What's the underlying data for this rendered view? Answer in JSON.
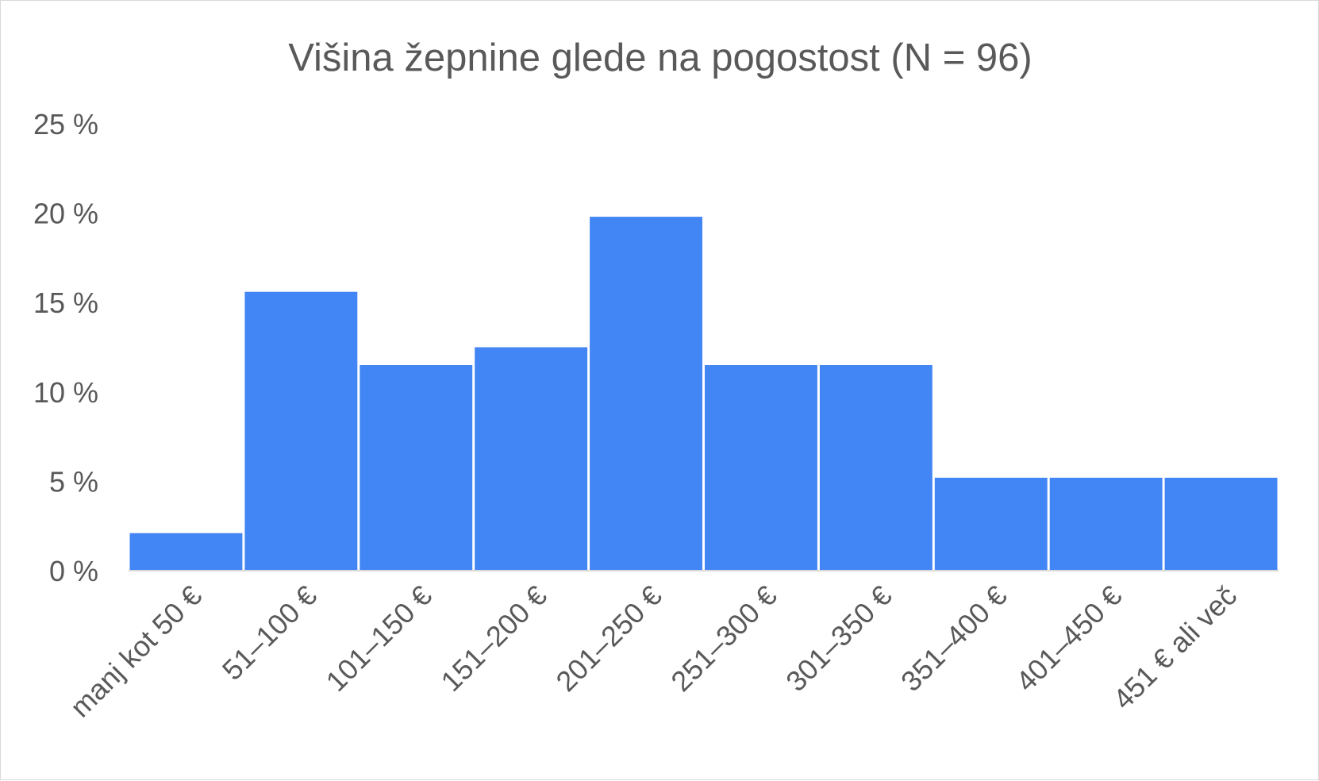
{
  "chart_data": {
    "type": "bar",
    "title": "Višina žepnine glede na pogostost (N = 96)",
    "categories": [
      "manj kot 50 €",
      "51–100 €",
      "101–150 €",
      "151–200 €",
      "201–250 €",
      "251–300 €",
      "301–350 €",
      "351–400 €",
      "401–450 €",
      "451 € ali več"
    ],
    "values": [
      2.1,
      15.6,
      11.5,
      12.5,
      19.8,
      11.5,
      11.5,
      5.2,
      5.2,
      5.2
    ],
    "yticks": [
      "0 %",
      "5 %",
      "10 %",
      "15 %",
      "20 %",
      "25 %"
    ],
    "ylim": [
      0,
      25
    ],
    "grid": false,
    "legend": "none",
    "bar_color": "#4285f4",
    "text_color": "#595959",
    "axis_color": "#d9d9d9"
  }
}
